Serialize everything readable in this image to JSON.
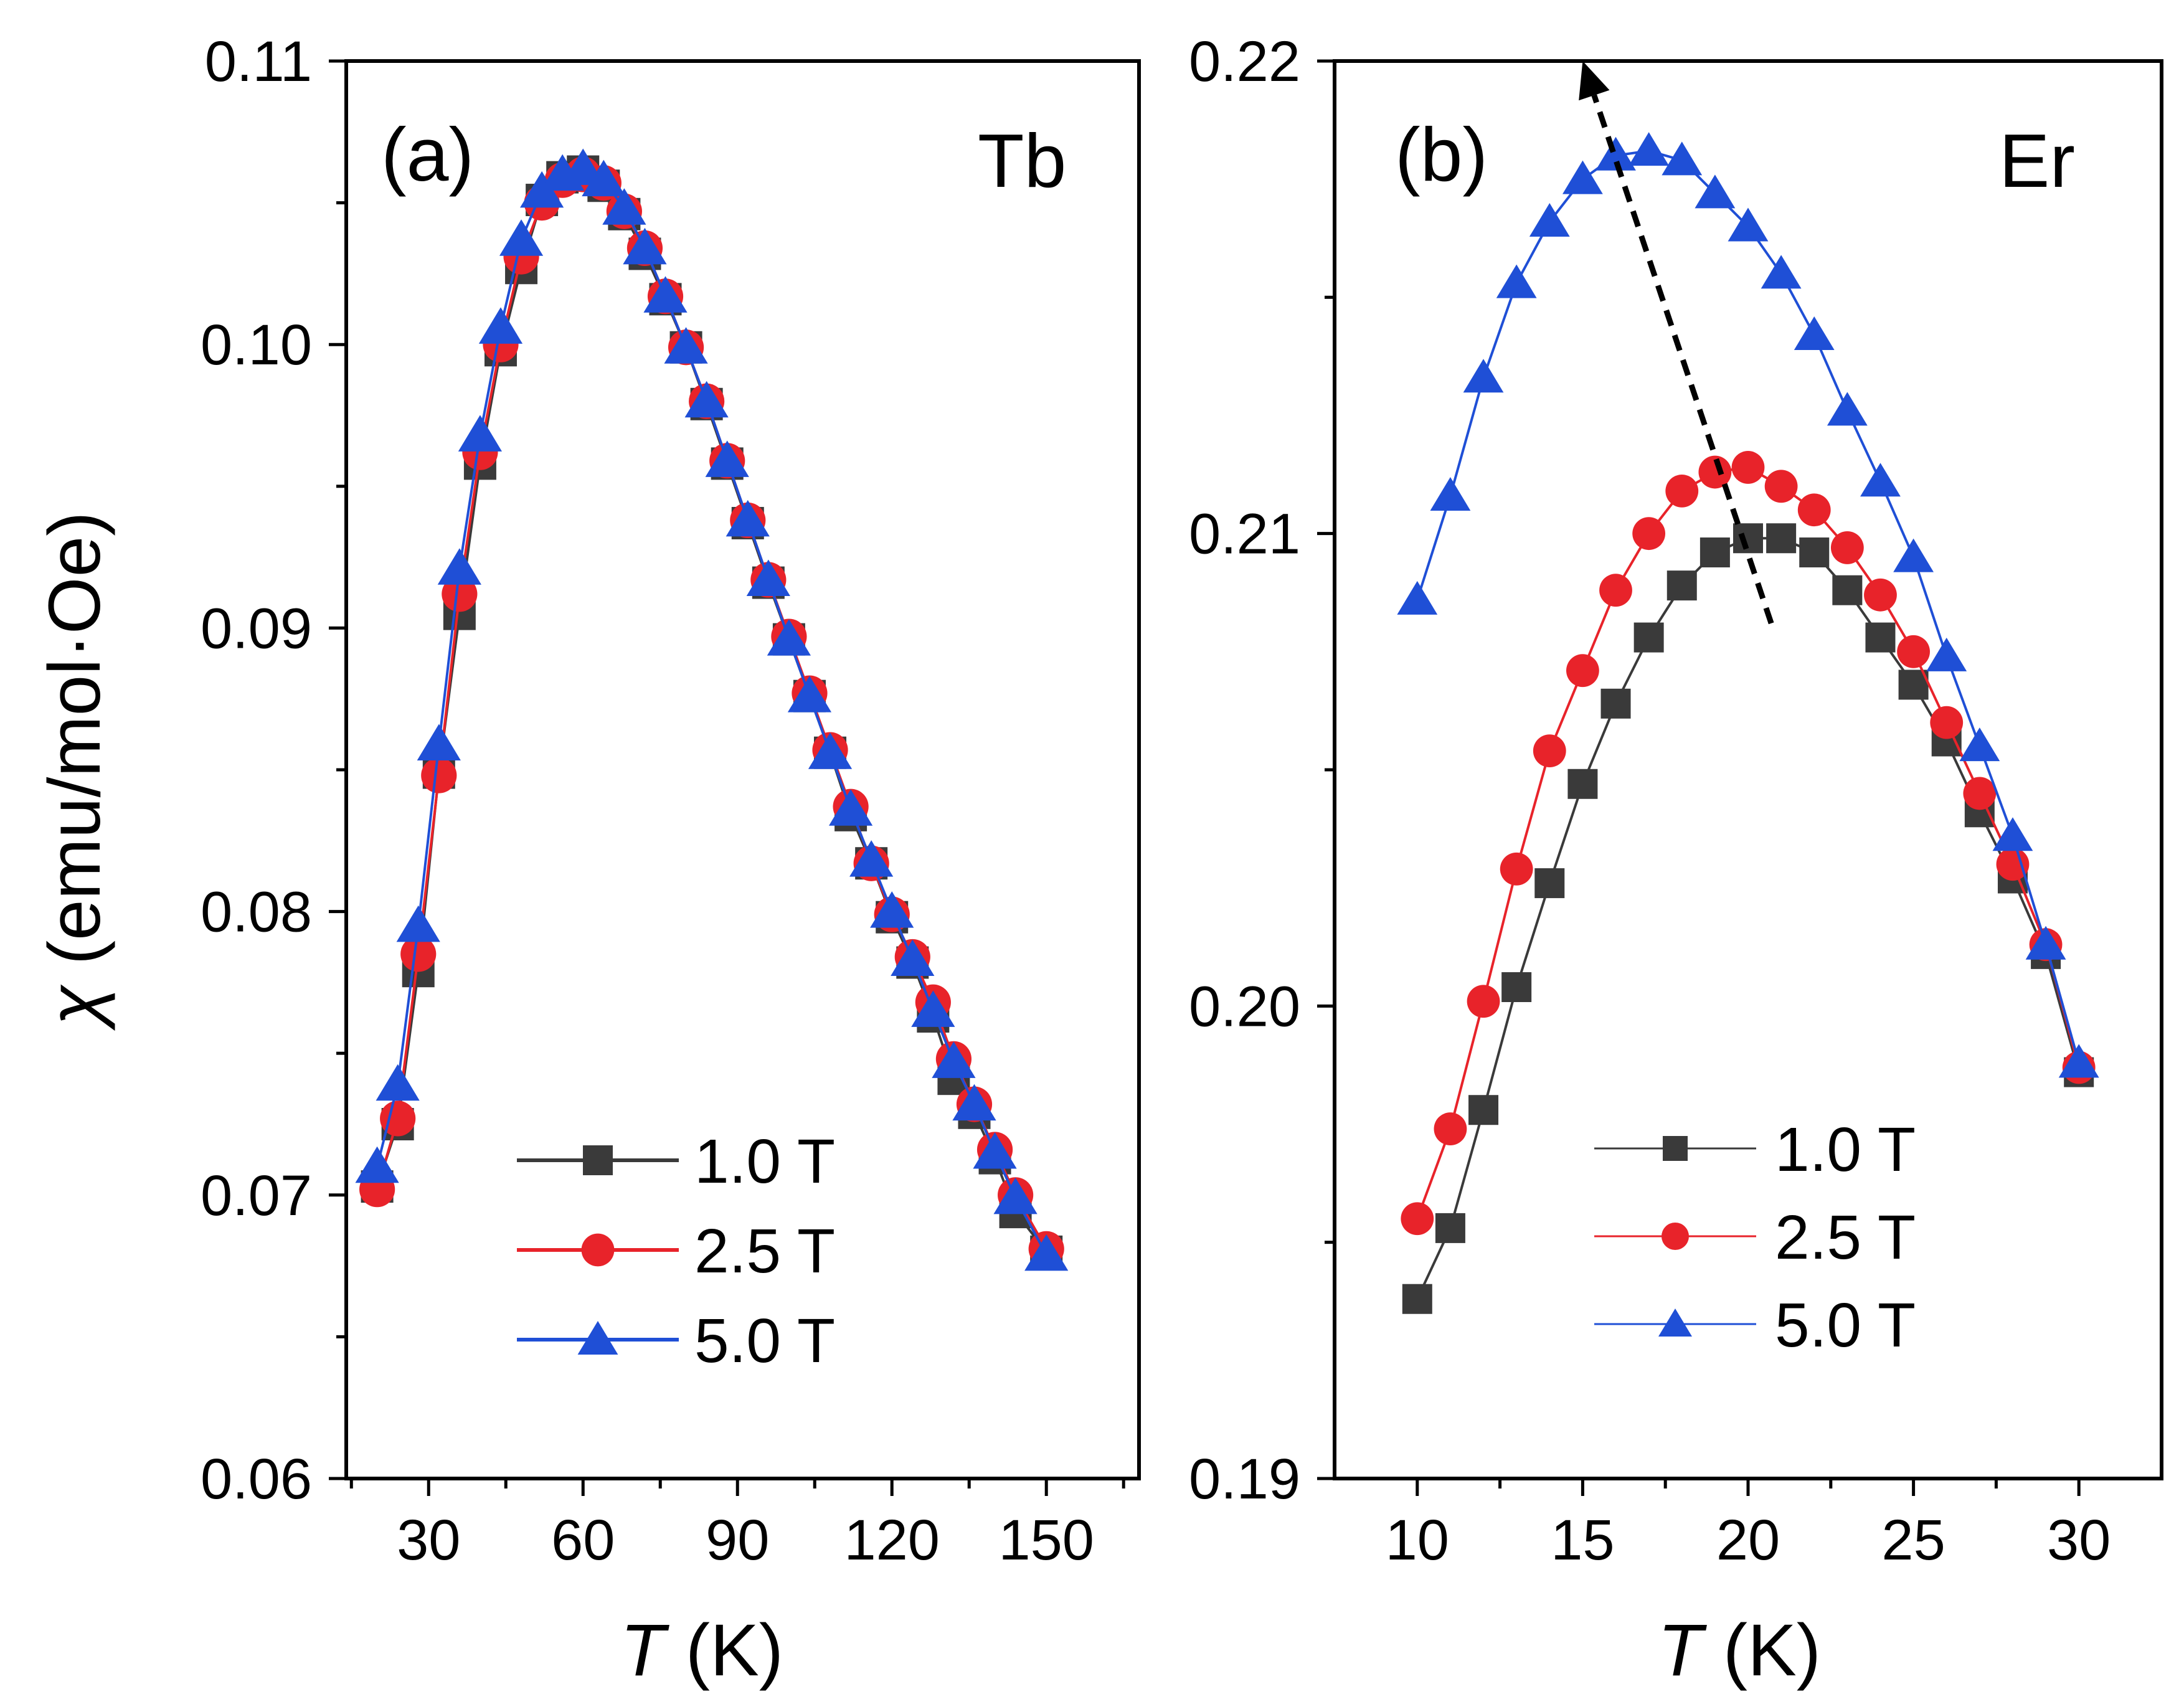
{
  "figure": {
    "ylabel_symbol": "χ",
    "ylabel_unit": "(emu/mol·Oe)"
  },
  "chart_data": [
    {
      "type": "line",
      "panel_label": "(a)",
      "title": "Tb",
      "xlabel_var": "T",
      "xlabel_unit": "(K)",
      "ylabel": "χ (emu/mol·Oe)",
      "xlim": [
        14,
        168
      ],
      "ylim": [
        0.06,
        0.11
      ],
      "xticks": [
        30,
        60,
        90,
        120,
        150
      ],
      "xtick_labels": [
        "30",
        "60",
        "90",
        "120",
        "150"
      ],
      "yticks": [
        0.06,
        0.07,
        0.08,
        0.09,
        0.1,
        0.11
      ],
      "ytick_labels": [
        "0.06",
        "0.07",
        "0.08",
        "0.09",
        "0.10",
        "0.11"
      ],
      "legend_position": "bottom-center",
      "series": [
        {
          "name": "1.0 T",
          "color": "#3a3a3a",
          "marker": "square",
          "x": [
            20,
            24,
            28,
            32,
            36,
            40,
            44,
            48,
            52,
            56,
            60,
            64,
            68,
            72,
            76,
            80,
            84,
            88,
            92,
            96,
            100,
            104,
            108,
            112,
            116,
            120,
            124,
            128,
            132,
            136,
            140,
            144,
            150
          ],
          "y": [
            0.0703,
            0.0725,
            0.0779,
            0.0849,
            0.0905,
            0.0958,
            0.0998,
            0.1027,
            0.1051,
            0.1059,
            0.1061,
            0.1056,
            0.1046,
            0.1032,
            0.1016,
            0.0999,
            0.0979,
            0.0958,
            0.0937,
            0.0916,
            0.0896,
            0.0876,
            0.0856,
            0.0834,
            0.0817,
            0.0798,
            0.0782,
            0.0763,
            0.0741,
            0.0729,
            0.0713,
            0.0694,
            0.068
          ]
        },
        {
          "name": "2.5 T",
          "color": "#e8232a",
          "marker": "circle",
          "x": [
            20,
            24,
            28,
            32,
            36,
            40,
            44,
            48,
            52,
            56,
            60,
            64,
            68,
            72,
            76,
            80,
            84,
            88,
            92,
            96,
            100,
            104,
            108,
            112,
            116,
            120,
            124,
            128,
            132,
            136,
            140,
            144,
            150
          ],
          "y": [
            0.0702,
            0.0727,
            0.0785,
            0.0848,
            0.0912,
            0.0962,
            0.1,
            0.1031,
            0.105,
            0.1058,
            0.106,
            0.1057,
            0.1047,
            0.1034,
            0.1017,
            0.0999,
            0.098,
            0.0959,
            0.0938,
            0.0917,
            0.0897,
            0.0877,
            0.0857,
            0.0837,
            0.0817,
            0.0799,
            0.0784,
            0.0768,
            0.0748,
            0.0732,
            0.0716,
            0.07,
            0.0681
          ]
        },
        {
          "name": "5.0 T",
          "color": "#1f4fd6",
          "marker": "triangle",
          "x": [
            20,
            24,
            28,
            32,
            36,
            40,
            44,
            48,
            52,
            56,
            60,
            64,
            68,
            72,
            76,
            80,
            84,
            88,
            92,
            96,
            100,
            104,
            108,
            112,
            116,
            120,
            124,
            128,
            132,
            136,
            140,
            144,
            150
          ],
          "y": [
            0.071,
            0.0739,
            0.0795,
            0.0859,
            0.0921,
            0.0968,
            0.1006,
            0.1037,
            0.1054,
            0.106,
            0.1062,
            0.1058,
            0.1048,
            0.1034,
            0.1017,
            0.0999,
            0.098,
            0.0959,
            0.0938,
            0.0917,
            0.0896,
            0.0876,
            0.0856,
            0.0836,
            0.0818,
            0.08,
            0.0783,
            0.0765,
            0.0747,
            0.0732,
            0.0715,
            0.0699,
            0.0679
          ]
        }
      ]
    },
    {
      "type": "line",
      "panel_label": "(b)",
      "title": "Er",
      "xlabel_var": "T",
      "xlabel_unit": "(K)",
      "ylabel": "χ (emu/mol·Oe)",
      "xlim": [
        7.5,
        32.5
      ],
      "ylim": [
        0.19,
        0.22
      ],
      "xticks": [
        10,
        15,
        20,
        25,
        30
      ],
      "xtick_labels": [
        "10",
        "15",
        "20",
        "25",
        "30"
      ],
      "yticks": [
        0.19,
        0.2,
        0.21,
        0.22
      ],
      "ytick_labels": [
        "0.19",
        "0.20",
        "0.21",
        "0.22"
      ],
      "legend_position": "bottom-center",
      "annotation": {
        "type": "dashed-arrow",
        "from": [
          20.7,
          0.2081
        ],
        "to": [
          15.0,
          0.22
        ]
      },
      "series": [
        {
          "name": "1.0 T",
          "color": "#3a3a3a",
          "marker": "square",
          "x": [
            10,
            11,
            12,
            13,
            14,
            15,
            16,
            17,
            18,
            19,
            20,
            21,
            22,
            23,
            24,
            25,
            26,
            27,
            28,
            29,
            30
          ],
          "y": [
            0.1938,
            0.1953,
            0.1978,
            0.2004,
            0.2026,
            0.2047,
            0.2064,
            0.2078,
            0.2089,
            0.2096,
            0.2099,
            0.2099,
            0.2096,
            0.2088,
            0.2078,
            0.2068,
            0.2056,
            0.2041,
            0.2027,
            0.2011,
            0.1986
          ]
        },
        {
          "name": "2.5 T",
          "color": "#e8232a",
          "marker": "circle",
          "x": [
            10,
            11,
            12,
            13,
            14,
            15,
            16,
            17,
            18,
            19,
            20,
            21,
            22,
            23,
            24,
            25,
            26,
            27,
            28,
            29,
            30
          ],
          "y": [
            0.1955,
            0.1974,
            0.2001,
            0.2029,
            0.2054,
            0.2071,
            0.2088,
            0.21,
            0.2109,
            0.2113,
            0.2114,
            0.211,
            0.2105,
            0.2097,
            0.2087,
            0.2075,
            0.206,
            0.2045,
            0.203,
            0.2013,
            0.1987
          ]
        },
        {
          "name": "5.0 T",
          "color": "#1f4fd6",
          "marker": "triangle",
          "x": [
            10,
            11,
            12,
            13,
            14,
            15,
            16,
            17,
            18,
            19,
            20,
            21,
            22,
            23,
            24,
            25,
            26,
            27,
            28,
            29,
            30
          ],
          "y": [
            0.2086,
            0.2108,
            0.2133,
            0.2153,
            0.2166,
            0.2175,
            0.218,
            0.2181,
            0.2179,
            0.2172,
            0.2165,
            0.2155,
            0.2142,
            0.2126,
            0.2111,
            0.2095,
            0.2074,
            0.2055,
            0.2036,
            0.2013,
            0.1988
          ]
        }
      ]
    }
  ]
}
